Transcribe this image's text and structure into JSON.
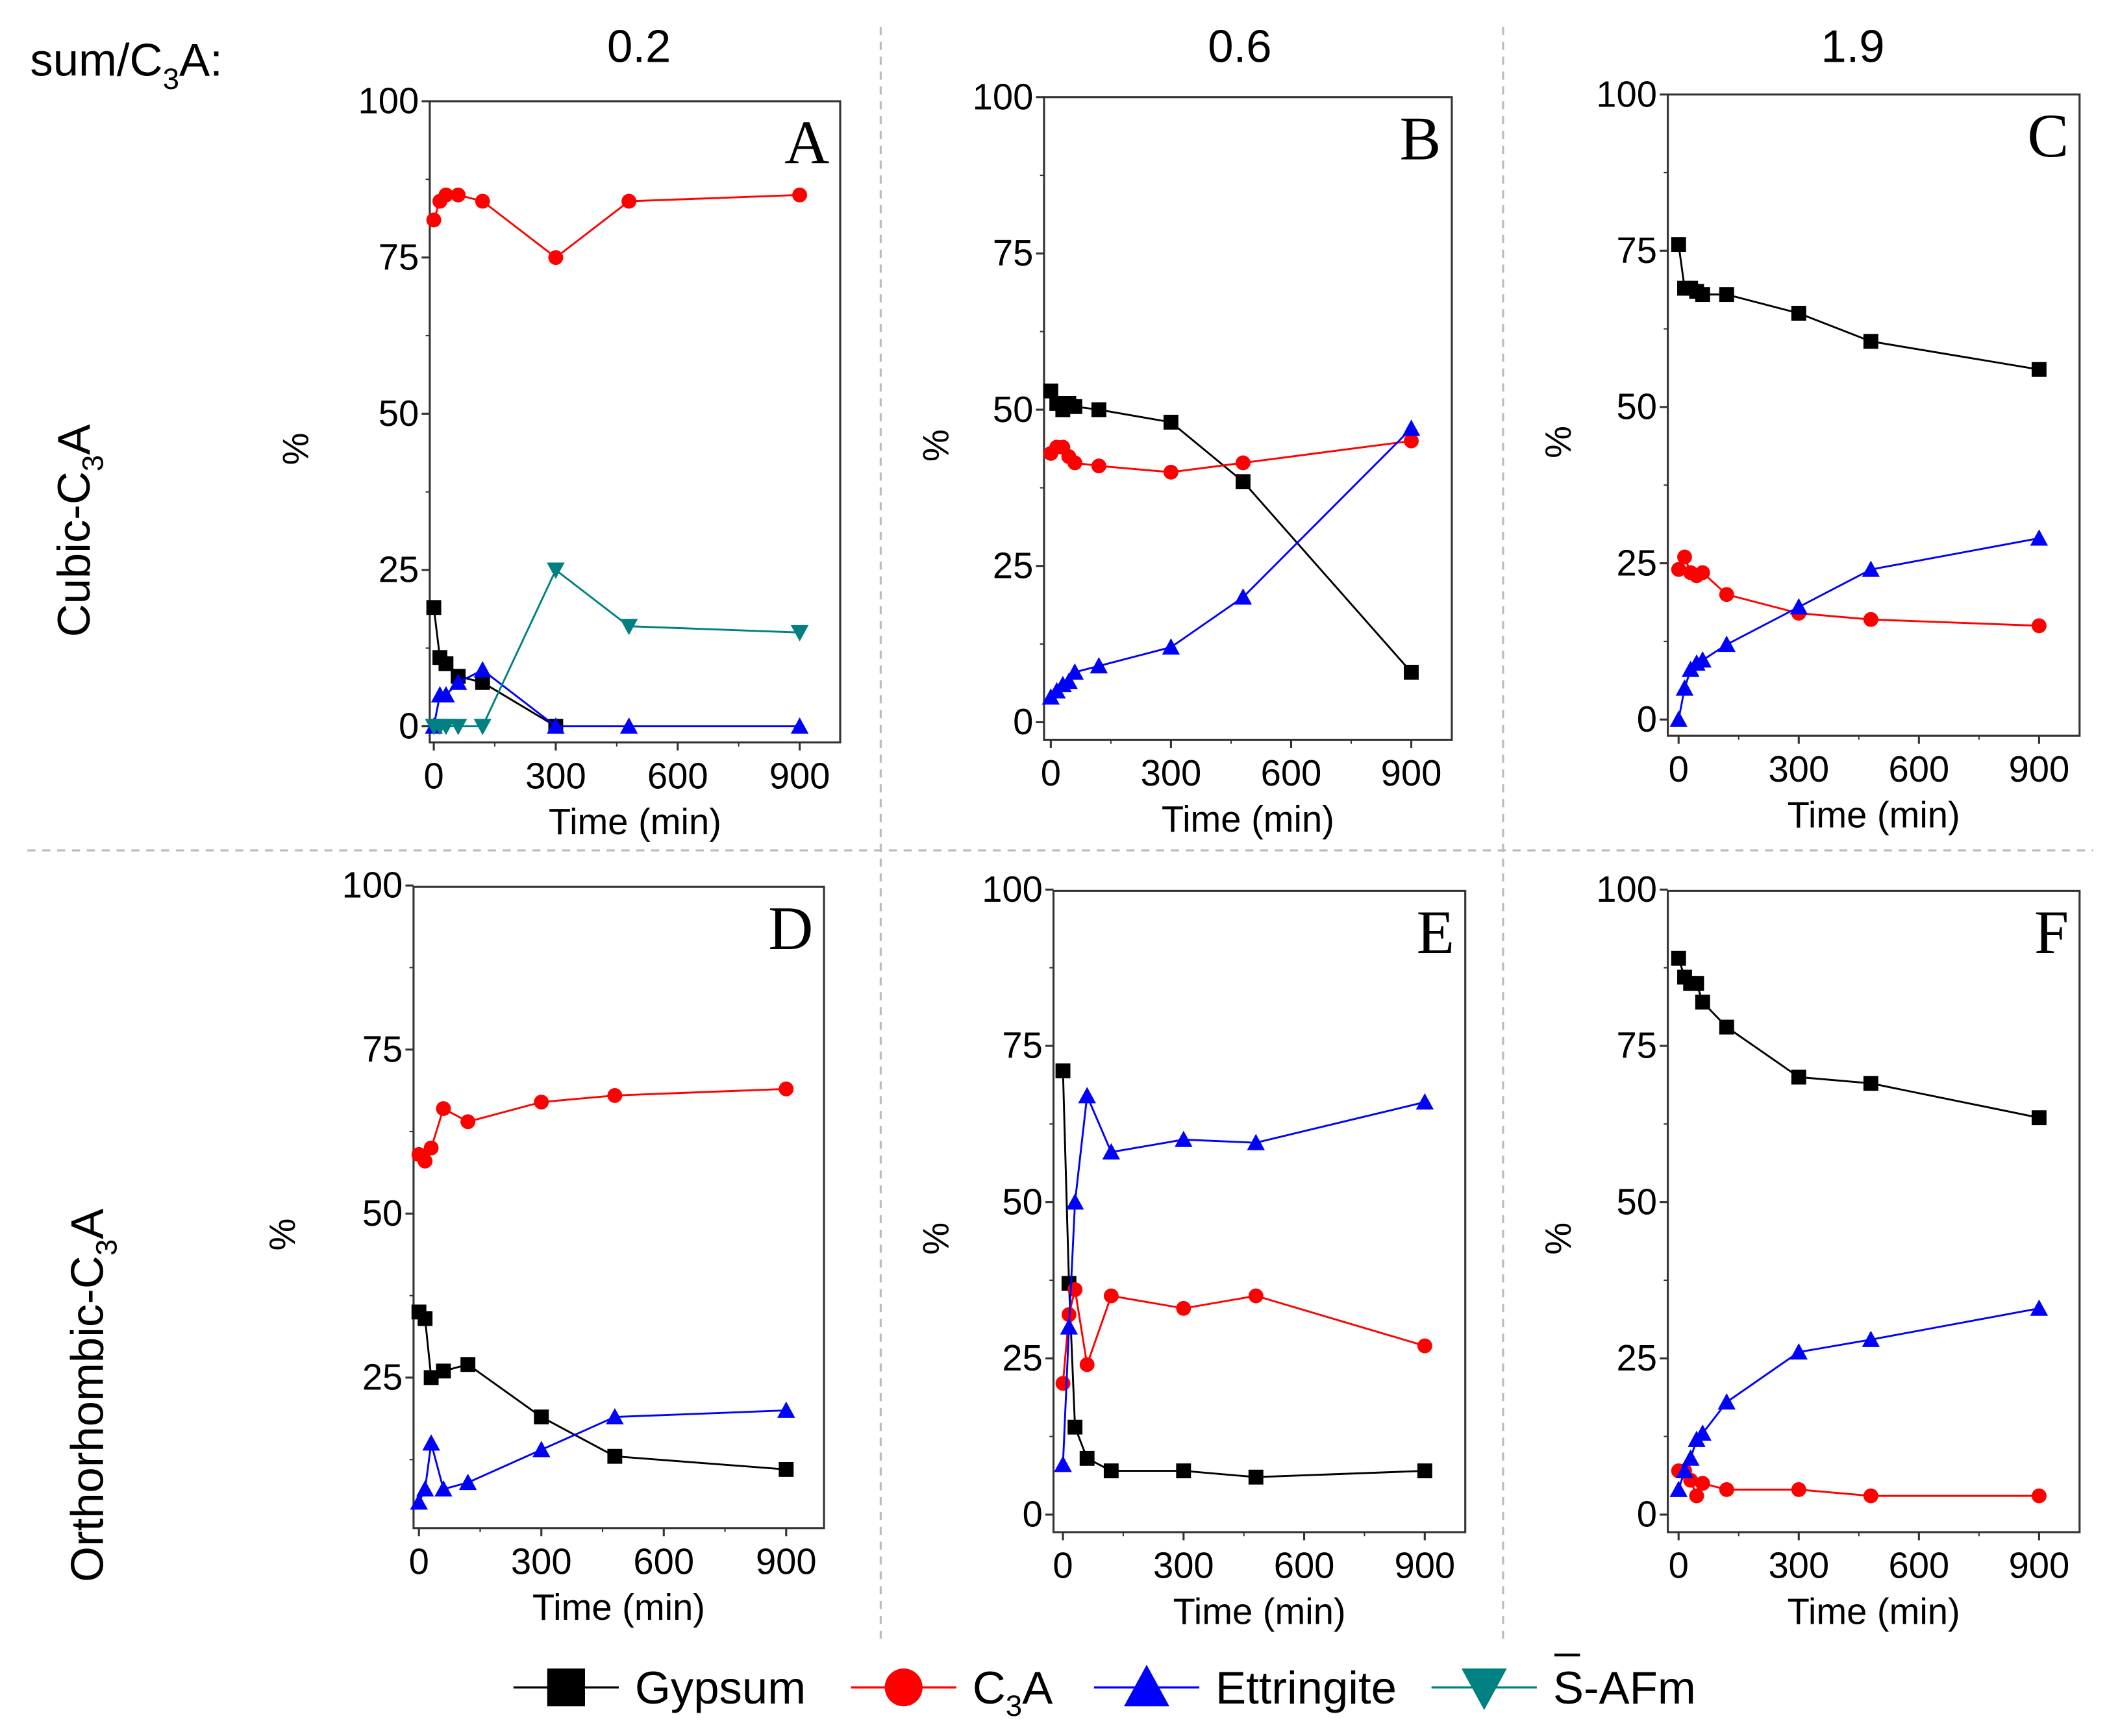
{
  "chart_data": {
    "type": "line",
    "header_label": {
      "main": "sum/C",
      "sub": "3",
      "tail": "A:"
    },
    "column_values": [
      "0.2",
      "0.6",
      "1.9"
    ],
    "row_labels": [
      {
        "main": "Cubic-C",
        "sub": "3",
        "tail": "A"
      },
      {
        "main": "Orthorhombic-C",
        "sub": "3",
        "tail": "A"
      }
    ],
    "xlabel": "Time (min)",
    "ylabel": "%",
    "xticks": [
      "0",
      "300",
      "600",
      "900"
    ],
    "yticks": [
      "0",
      "25",
      "50",
      "75",
      "100"
    ],
    "xlim": [
      0,
      900
    ],
    "ylim": [
      0,
      100
    ],
    "legend": [
      {
        "name": "Gypsum",
        "color": "#000000",
        "marker": "square"
      },
      {
        "name": "C3A",
        "main": "C",
        "sub": "3",
        "tail": "A",
        "color": "#ff0000",
        "marker": "circle"
      },
      {
        "name": "Ettringite",
        "color": "#0000ff",
        "marker": "triangle-up"
      },
      {
        "name": "S-AFm",
        "main": "S",
        "tail": "-AFm",
        "color": "#008080",
        "marker": "triangle-down"
      }
    ],
    "panels": [
      {
        "label": "A",
        "series": [
          {
            "name": "Gypsum",
            "x": [
              0,
              15,
              30,
              60,
              120,
              300
            ],
            "y": [
              19,
              11,
              10,
              8,
              7,
              0
            ]
          },
          {
            "name": "C3A",
            "x": [
              0,
              15,
              30,
              60,
              120,
              300,
              480,
              900
            ],
            "y": [
              81,
              84,
              85,
              85,
              84,
              75,
              84,
              85
            ]
          },
          {
            "name": "Ettringite",
            "x": [
              0,
              15,
              30,
              60,
              120,
              300,
              480,
              900
            ],
            "y": [
              0,
              5,
              5,
              7,
              9,
              0,
              0,
              0
            ]
          },
          {
            "name": "S-AFm",
            "x": [
              0,
              15,
              30,
              60,
              120,
              300,
              480,
              900
            ],
            "y": [
              0,
              0,
              0,
              0,
              0,
              25,
              16,
              15
            ]
          }
        ]
      },
      {
        "label": "B",
        "series": [
          {
            "name": "Gypsum",
            "x": [
              0,
              15,
              30,
              45,
              60,
              120,
              300,
              480,
              900
            ],
            "y": [
              53,
              51,
              50,
              51,
              50.5,
              50,
              48,
              38.5,
              8
            ]
          },
          {
            "name": "C3A",
            "x": [
              0,
              15,
              30,
              45,
              60,
              120,
              300,
              480,
              900
            ],
            "y": [
              43,
              44,
              44,
              42.5,
              41.5,
              41,
              40,
              41.5,
              45
            ]
          },
          {
            "name": "Ettringite",
            "x": [
              0,
              15,
              30,
              45,
              60,
              120,
              300,
              480,
              900
            ],
            "y": [
              4,
              5,
              6,
              6.5,
              8,
              9,
              12,
              20,
              47
            ]
          }
        ]
      },
      {
        "label": "C",
        "series": [
          {
            "name": "Gypsum",
            "x": [
              0,
              15,
              30,
              45,
              60,
              120,
              300,
              480,
              900
            ],
            "y": [
              76,
              69,
              69,
              68.5,
              68,
              68,
              65,
              60.5,
              56
            ]
          },
          {
            "name": "C3A",
            "x": [
              0,
              15,
              30,
              45,
              60,
              120,
              300,
              480,
              900
            ],
            "y": [
              24,
              26,
              23.5,
              23,
              23.5,
              20,
              17,
              16,
              15
            ]
          },
          {
            "name": "Ettringite",
            "x": [
              0,
              15,
              30,
              45,
              60,
              120,
              300,
              480,
              900
            ],
            "y": [
              0,
              5,
              8,
              9,
              9.5,
              12,
              18,
              24,
              29
            ]
          }
        ]
      },
      {
        "label": "D",
        "series": [
          {
            "name": "Gypsum",
            "x": [
              0,
              15,
              30,
              60,
              120,
              300,
              480,
              900
            ],
            "y": [
              35,
              34,
              25,
              26,
              27,
              19,
              13,
              11
            ]
          },
          {
            "name": "C3A",
            "x": [
              0,
              15,
              30,
              60,
              120,
              300,
              480,
              900
            ],
            "y": [
              59,
              58,
              60,
              66,
              64,
              67,
              68,
              69
            ]
          },
          {
            "name": "Ettringite",
            "x": [
              0,
              15,
              30,
              60,
              120,
              300,
              480,
              900
            ],
            "y": [
              6,
              8,
              15,
              8,
              9,
              14,
              19,
              20
            ]
          }
        ]
      },
      {
        "label": "E",
        "series": [
          {
            "name": "Gypsum",
            "x": [
              0,
              15,
              30,
              60,
              120,
              300,
              480,
              900
            ],
            "y": [
              71,
              37,
              14,
              9,
              7,
              7,
              6,
              7
            ]
          },
          {
            "name": "C3A",
            "x": [
              0,
              15,
              30,
              60,
              120,
              300,
              480,
              900
            ],
            "y": [
              21,
              32,
              36,
              24,
              35,
              33,
              35,
              27
            ]
          },
          {
            "name": "Ettringite",
            "x": [
              0,
              15,
              30,
              60,
              120,
              300,
              480,
              900
            ],
            "y": [
              8,
              30,
              50,
              67,
              58,
              60,
              59.5,
              66
            ]
          }
        ]
      },
      {
        "label": "F",
        "series": [
          {
            "name": "Gypsum",
            "x": [
              0,
              15,
              30,
              45,
              60,
              120,
              300,
              480,
              900
            ],
            "y": [
              89,
              86,
              85,
              85,
              82,
              78,
              70,
              69,
              63.5
            ]
          },
          {
            "name": "C3A",
            "x": [
              0,
              15,
              30,
              45,
              60,
              120,
              300,
              480,
              900
            ],
            "y": [
              7,
              7,
              5.5,
              3,
              5,
              4,
              4,
              3,
              3
            ]
          },
          {
            "name": "Ettringite",
            "x": [
              0,
              15,
              30,
              45,
              60,
              120,
              300,
              480,
              900
            ],
            "y": [
              4,
              7,
              9,
              12,
              13,
              18,
              26,
              28,
              33
            ]
          }
        ]
      }
    ]
  }
}
